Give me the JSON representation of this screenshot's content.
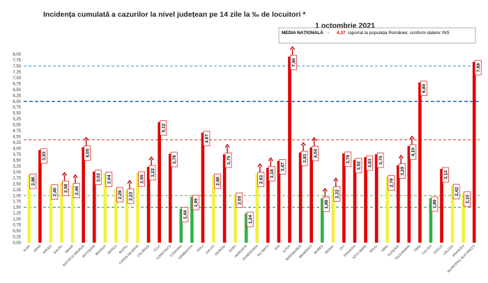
{
  "chart_data": {
    "type": "bar",
    "title": "Incidența cumulată a cazurilor la nivel județean pe 14 zile la ‰ de locuitori *",
    "date": "1 octombrie 2021",
    "legend": {
      "name": "MEDIA NAȚIONALĂ",
      "separator": " - ",
      "value": "4,37",
      "note": "raportat la populația României, conform datelor INS",
      "placement": "top-right"
    },
    "ylim": [
      0,
      8
    ],
    "yticks": [
      "0,00",
      "0,25",
      "0,50",
      "0,75",
      "1,00",
      "1,25",
      "1,50",
      "1,75",
      "2,00",
      "2,25",
      "2,50",
      "2,75",
      "3,00",
      "3,25",
      "3,50",
      "3,75",
      "4,00",
      "4,25",
      "4,50",
      "4,75",
      "5,00",
      "5,25",
      "5,50",
      "5,75",
      "6,00",
      "6,25",
      "6,50",
      "6,75",
      "7,00",
      "7,25",
      "7,50",
      "7,75",
      "8,00"
    ],
    "reference_lines": [
      {
        "value": 1.5,
        "color": "#2e8b57",
        "style": "dashed"
      },
      {
        "value": 2.0,
        "color": "#6aa84f",
        "style": "dashed"
      },
      {
        "value": 4.37,
        "color": "#e53935",
        "style": "dashed"
      },
      {
        "value": 6.0,
        "color": "#1f5fa8",
        "style": "dashed"
      },
      {
        "value": 7.5,
        "color": "#3a9bd5",
        "style": "dashed"
      }
    ],
    "colors": {
      "green": "#2db34a",
      "yellow": "#f2f240",
      "red": "#e00000",
      "arrow": "#c00000"
    },
    "categories": [
      "ALBA",
      "ARAD",
      "ARGEȘ",
      "BACĂU",
      "BIHOR",
      "BISTRIȚA-NĂSĂUD",
      "BOTOȘANI",
      "BRAȘOV",
      "BRĂILA",
      "BUZĂU",
      "CARAȘ-SEVERIN",
      "CĂLĂRAȘI",
      "CLUJ",
      "CONSTANȚA",
      "COVASNA",
      "DÂMBOVIȚA",
      "DOLJ",
      "GALAȚI",
      "GIURGIU",
      "GORJ",
      "HARGHITA",
      "HUNEDOARA",
      "IALOMIȚA",
      "IAȘI",
      "ILFOV",
      "MARAMUREȘ",
      "MEHEDINȚI",
      "MUREȘ",
      "NEAMȚ",
      "OLT",
      "PRAHOVA",
      "SATU MARE",
      "SĂLAJ",
      "SIBIU",
      "SUCEAVA",
      "TELEORMAN",
      "TIMIȘ",
      "TULCEA",
      "VASLUI",
      "VÂLCEA",
      "VRANCEA",
      "MUNICIPIUL BUCUREȘTI"
    ],
    "values": [
      2.86,
      3.93,
      2.4,
      2.56,
      2.46,
      4.05,
      3.02,
      2.94,
      2.28,
      2.22,
      2.95,
      3.22,
      5.12,
      3.78,
      1.44,
      1.95,
      4.67,
      2.86,
      3.75,
      2.05,
      1.24,
      2.93,
      3.18,
      3.47,
      7.9,
      3.83,
      4.04,
      1.88,
      2.32,
      3.79,
      3.52,
      3.63,
      3.75,
      2.79,
      3.29,
      4.1,
      6.8,
      1.89,
      3.13,
      2.42,
      2.1,
      7.68
    ],
    "labels": [
      "2,86",
      "3,93",
      "2,40",
      "2,56",
      "2,46",
      "4,05",
      "3,02",
      "2,94",
      "2,28",
      "2,22",
      "2,95",
      "3,22",
      "5,12",
      "3,78",
      "1,44",
      "1,95",
      "4,67",
      "2,86",
      "3,75",
      "2,05",
      "1,24",
      "2,93",
      "3,18",
      "3,47",
      "7,90",
      "3,83",
      "4,04",
      "1,88",
      "2,32",
      "3,79",
      "3,52",
      "3,63",
      "3,75",
      "2,79",
      "3,29",
      "4,10",
      "6,80",
      "1,89",
      "3,13",
      "2,42",
      "2,10",
      "7,68"
    ],
    "bar_colors": [
      "yellow",
      "red",
      "yellow",
      "yellow",
      "yellow",
      "red",
      "red",
      "yellow",
      "yellow",
      "yellow",
      "yellow",
      "red",
      "red",
      "red",
      "green",
      "green",
      "red",
      "yellow",
      "red",
      "yellow",
      "green",
      "yellow",
      "red",
      "red",
      "red",
      "red",
      "red",
      "green",
      "yellow",
      "red",
      "red",
      "red",
      "red",
      "yellow",
      "red",
      "red",
      "red",
      "green",
      "red",
      "yellow",
      "yellow",
      "red"
    ],
    "rising": [
      false,
      false,
      false,
      true,
      true,
      true,
      false,
      false,
      false,
      true,
      false,
      true,
      false,
      false,
      false,
      false,
      false,
      false,
      true,
      false,
      false,
      true,
      true,
      false,
      true,
      true,
      true,
      true,
      true,
      false,
      false,
      false,
      false,
      false,
      true,
      true,
      false,
      false,
      false,
      false,
      false,
      false
    ]
  }
}
